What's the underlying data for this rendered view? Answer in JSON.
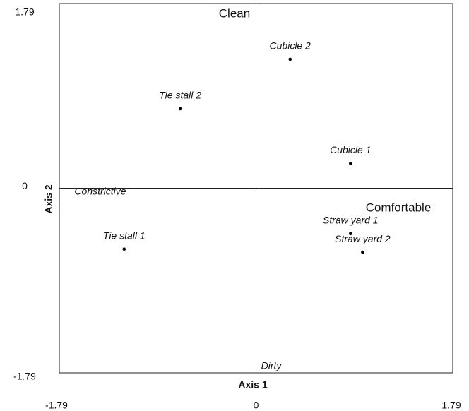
{
  "chart_data": {
    "type": "scatter",
    "xlabel": "Axis 1",
    "ylabel": "Axis 2",
    "x": [
      0.31,
      -0.69,
      0.86,
      0.86,
      0.97,
      -1.2
    ],
    "y": [
      1.25,
      0.77,
      0.24,
      -0.44,
      -0.62,
      -0.59
    ],
    "labels": [
      "Cubicle 2",
      "Tie stall 2",
      "Cubicle 1",
      "Straw yard 1",
      "Straw yard 2",
      "Tie stall 1"
    ],
    "color": "#000000",
    "annotations": [
      "Clean",
      "Dirty",
      "Constrictive",
      "Comfortable"
    ],
    "xlim": [
      -1.79,
      1.79
    ],
    "ylim": [
      -1.79,
      1.79
    ],
    "xticks": [
      -1.79,
      0,
      1.79
    ],
    "yticks": [
      -1.79,
      0,
      1.79
    ],
    "grid": true
  }
}
